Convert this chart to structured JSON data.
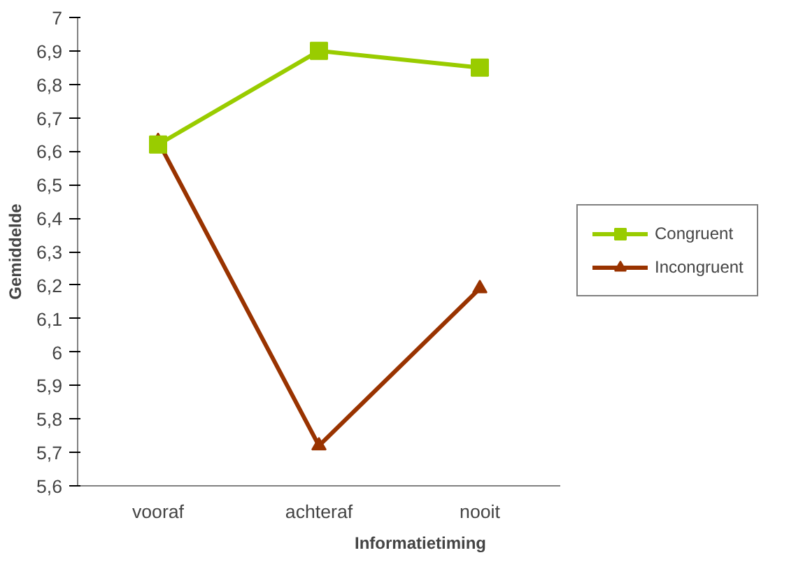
{
  "chart_data": {
    "type": "line",
    "xlabel": "Informatietiming",
    "ylabel": "Gemiddelde",
    "categories": [
      "vooraf",
      "achteraf",
      "nooit"
    ],
    "series": [
      {
        "name": "Congruent",
        "color": "#99cc00",
        "values": [
          6.62,
          6.9,
          6.85
        ],
        "marker": "square"
      },
      {
        "name": "Incongruent",
        "color": "#993300",
        "values": [
          6.63,
          5.72,
          6.19
        ],
        "marker": "triangle"
      }
    ],
    "ylim": [
      5.6,
      7
    ],
    "yticks": [
      {
        "value": 5.6,
        "label": "5,6"
      },
      {
        "value": 5.7,
        "label": "5,7"
      },
      {
        "value": 5.8,
        "label": "5,8"
      },
      {
        "value": 5.9,
        "label": "5,9"
      },
      6,
      {
        "value": 6.1,
        "label": "6,1"
      },
      {
        "value": 6.2,
        "label": "6,2"
      },
      {
        "value": 6.3,
        "label": "6,3"
      },
      {
        "value": 6.4,
        "label": "6,4"
      },
      {
        "value": 6.5,
        "label": "6,5"
      },
      {
        "value": 6.6,
        "label": "6,6"
      },
      {
        "value": 6.7,
        "label": "6,7"
      },
      {
        "value": 6.8,
        "label": "6,8"
      },
      {
        "value": 6.9,
        "label": "6,9"
      },
      7
    ],
    "grid": false,
    "legend": "right",
    "line_style": "solid"
  }
}
